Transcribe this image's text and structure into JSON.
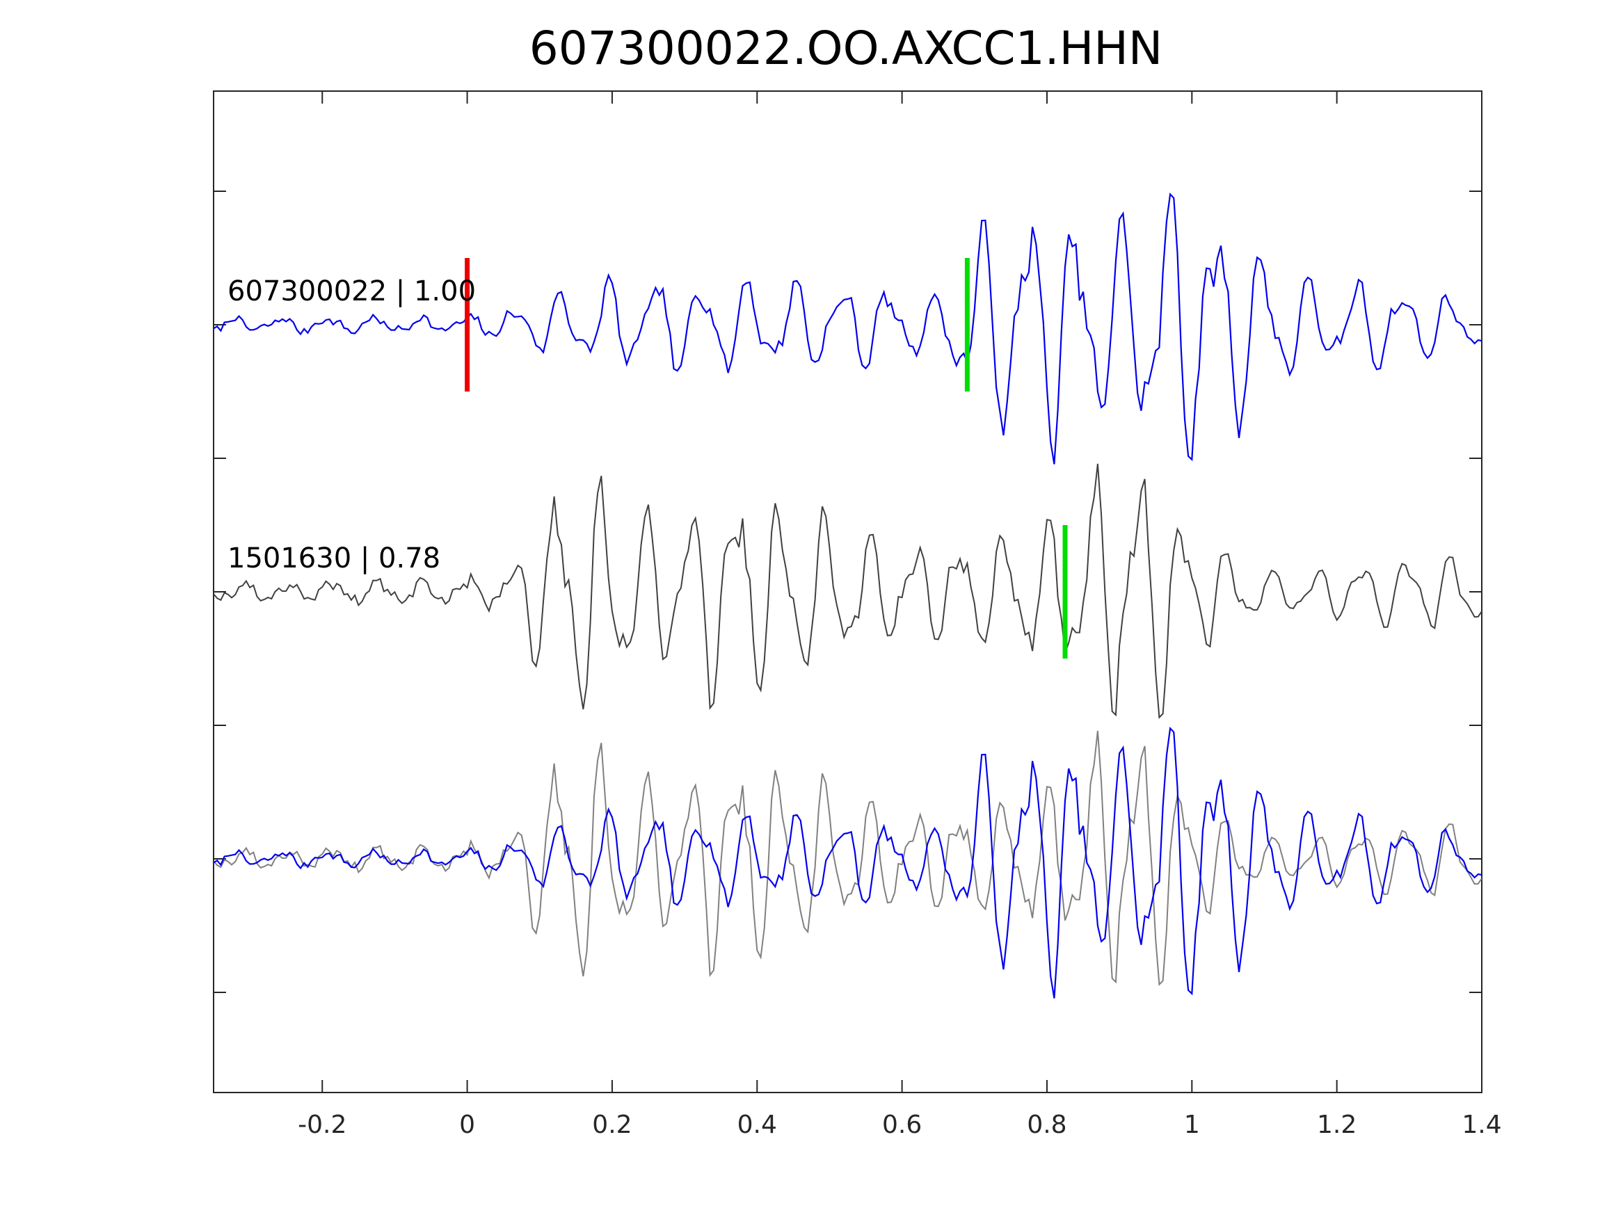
{
  "chart_data": {
    "type": "line",
    "title": "607300022.OO.AXCC1.HHN",
    "xlabel": "",
    "ylabel": "",
    "xlim": [
      -0.35,
      1.4
    ],
    "xticks": [
      "-0.2",
      "0",
      "0.2",
      "0.4",
      "0.6",
      "0.8",
      "1",
      "1.2",
      "1.4"
    ],
    "xtick_values": [
      -0.2,
      0,
      0.2,
      0.4,
      0.6,
      0.8,
      1.0,
      1.2,
      1.4
    ],
    "yticks_count": 7,
    "grid": false,
    "traces": [
      {
        "label": "607300022 | 1.00",
        "color": "#0000ee",
        "baseline": 2.0,
        "phase_picks": [
          {
            "time": 0.0,
            "color": "#ee0000"
          },
          {
            "time": 0.69,
            "color": "#00dd00"
          }
        ],
        "envelope": [
          [
            -0.35,
            0.05
          ],
          [
            0.0,
            0.06
          ],
          [
            0.05,
            0.1
          ],
          [
            0.15,
            0.3
          ],
          [
            0.3,
            0.36
          ],
          [
            0.55,
            0.3
          ],
          [
            0.65,
            0.2
          ],
          [
            0.69,
            0.6
          ],
          [
            0.76,
            1.0
          ],
          [
            0.85,
            0.75
          ],
          [
            0.92,
            0.85
          ],
          [
            0.98,
            1.05
          ],
          [
            1.06,
            0.75
          ],
          [
            1.15,
            0.35
          ],
          [
            1.25,
            0.32
          ],
          [
            1.4,
            0.18
          ]
        ]
      },
      {
        "label": "1501630 | 0.78",
        "color": "#404040",
        "baseline": 0.0,
        "phase_picks": [
          {
            "time": 0.825,
            "color": "#00dd00"
          }
        ],
        "envelope": [
          [
            -0.35,
            0.06
          ],
          [
            0.05,
            0.1
          ],
          [
            0.1,
            0.6
          ],
          [
            0.14,
            0.95
          ],
          [
            0.25,
            0.6
          ],
          [
            0.38,
            0.85
          ],
          [
            0.5,
            0.55
          ],
          [
            0.6,
            0.35
          ],
          [
            0.7,
            0.4
          ],
          [
            0.82,
            0.6
          ],
          [
            0.88,
            0.9
          ],
          [
            0.93,
            1.05
          ],
          [
            1.0,
            0.45
          ],
          [
            1.1,
            0.15
          ],
          [
            1.4,
            0.3
          ]
        ]
      },
      {
        "label": "",
        "color": "#0000ee",
        "overlay_color": "#808080",
        "baseline": -2.0,
        "overlay_of": [
          0,
          1
        ],
        "phase_picks": []
      }
    ]
  }
}
